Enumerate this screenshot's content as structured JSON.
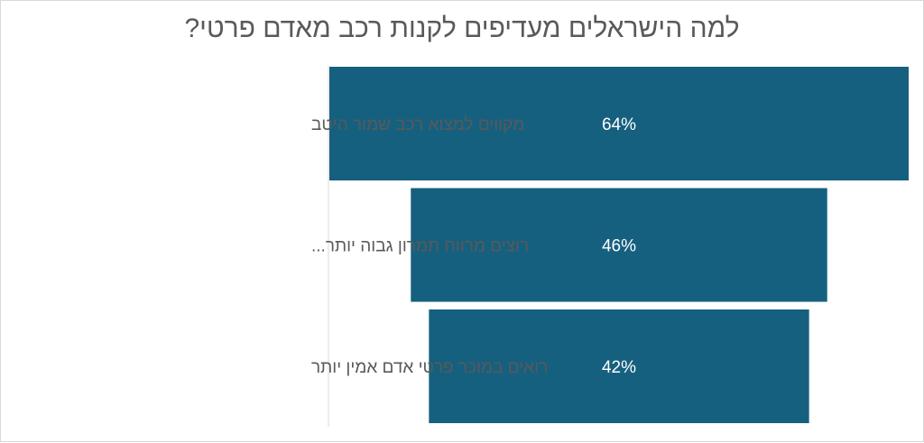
{
  "chart_data": {
    "type": "bar",
    "orientation": "horizontal-funnel",
    "title": "למה הישראלים מעדיפים לקנות רכב מאדם פרטי?",
    "categories": [
      "מקווים למצוא רכב שמור היטב",
      "רוצים מרווח תמרון גבוה יותר...",
      "רואים במוכר פרטי אדם אמין יותר"
    ],
    "values": [
      64,
      46,
      42
    ],
    "data_labels": [
      "64%",
      "46%",
      "42%"
    ],
    "unit": "%",
    "bar_color": "#16607f",
    "grid": false,
    "legend": "none"
  }
}
